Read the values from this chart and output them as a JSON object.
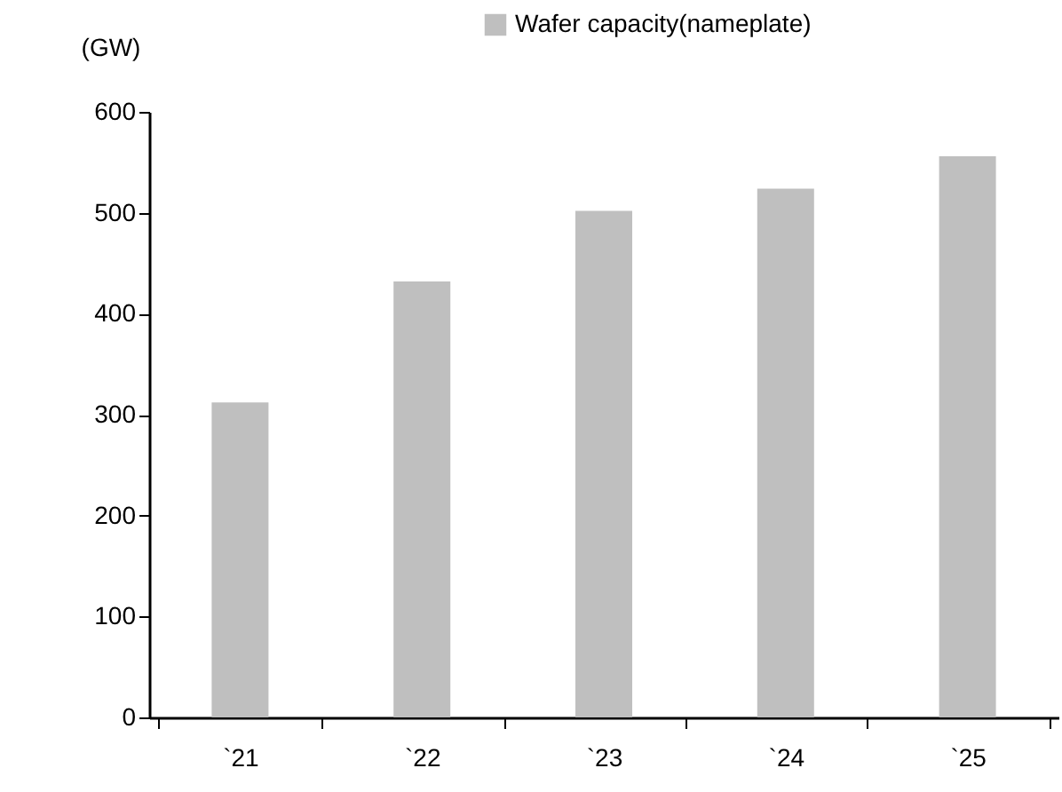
{
  "chart_data": {
    "type": "bar",
    "ylabel": "(GW)",
    "categories": [
      "`21",
      "`22",
      "`23",
      "`24",
      "`25"
    ],
    "series": [
      {
        "name": "Wafer capacity(nameplate)",
        "color": "#bfbfbf",
        "values": [
          312,
          432,
          502,
          524,
          556
        ]
      }
    ],
    "ylim": [
      0,
      600
    ],
    "yticks": [
      0,
      100,
      200,
      300,
      400,
      500,
      600
    ],
    "grid": false,
    "legend": "top right"
  }
}
